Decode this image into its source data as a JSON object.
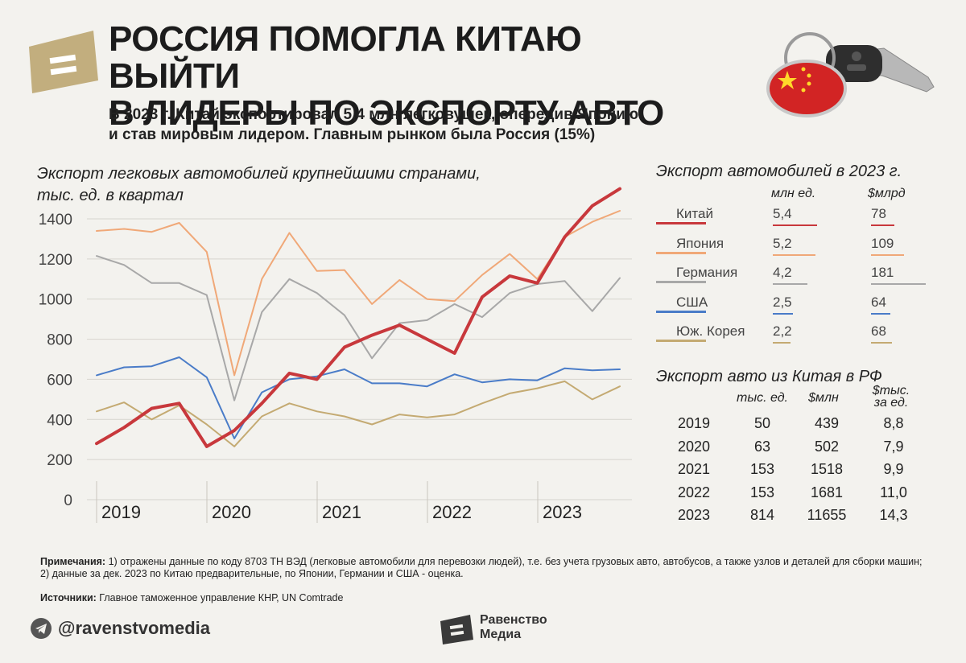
{
  "header": {
    "title_line1": "РОССИЯ ПОМОГЛА КИТАЮ ВЫЙТИ",
    "title_line2": "В ЛИДЕРЫ ПО ЭКСПОРТУ АВТО",
    "subtitle_line1": "В 2023 г. Китай экспортировал 5,4 млн легковушек, опередив Японию",
    "subtitle_line2": "и став мировым лидером. Главным рынком была Россия (15%)"
  },
  "colors": {
    "china": "#c8383c",
    "japan": "#f0a878",
    "germany": "#a8a8a8",
    "usa": "#4a7cc8",
    "korea": "#c4aa72",
    "logo": "#c2ae7e"
  },
  "chart_data": {
    "type": "line",
    "title_line1": "Экспорт легковых автомобилей крупнейшими странами,",
    "title_line2": "тыс. ед. в квартал",
    "ylim": [
      0,
      1500
    ],
    "yticks": [
      0,
      200,
      400,
      600,
      800,
      1000,
      1200,
      1400
    ],
    "x_groups": [
      "2019",
      "2020",
      "2021",
      "2022",
      "2023"
    ],
    "x": [
      "2019Q1",
      "2019Q2",
      "2019Q3",
      "2019Q4",
      "2020Q1",
      "2020Q2",
      "2020Q3",
      "2020Q4",
      "2021Q1",
      "2021Q2",
      "2021Q3",
      "2021Q4",
      "2022Q1",
      "2022Q2",
      "2022Q3",
      "2022Q4",
      "2023Q1",
      "2023Q2",
      "2023Q3",
      "2023Q4"
    ],
    "series": [
      {
        "name": "Япония",
        "color": "#f0a878",
        "width": 2,
        "values": [
          1340,
          1350,
          1335,
          1380,
          1235,
          620,
          1100,
          1330,
          1140,
          1145,
          975,
          1095,
          1000,
          990,
          1120,
          1225,
          1100,
          1310,
          1385,
          1440
        ]
      },
      {
        "name": "Германия",
        "color": "#a8a8a8",
        "width": 2,
        "values": [
          1215,
          1170,
          1080,
          1080,
          1020,
          495,
          935,
          1100,
          1030,
          920,
          705,
          880,
          895,
          975,
          910,
          1030,
          1075,
          1090,
          940,
          1105
        ]
      },
      {
        "name": "США",
        "color": "#4a7cc8",
        "width": 2,
        "values": [
          620,
          660,
          665,
          710,
          610,
          305,
          535,
          600,
          615,
          650,
          580,
          580,
          565,
          625,
          585,
          600,
          595,
          655,
          645,
          650
        ]
      },
      {
        "name": "Юж. Корея",
        "color": "#c4aa72",
        "width": 2,
        "values": [
          440,
          485,
          400,
          470,
          375,
          265,
          415,
          480,
          440,
          415,
          375,
          425,
          410,
          425,
          480,
          530,
          555,
          590,
          500,
          565
        ]
      },
      {
        "name": "Китай",
        "color": "#c8383c",
        "width": 4,
        "values": [
          280,
          360,
          455,
          480,
          265,
          345,
          480,
          630,
          600,
          760,
          820,
          870,
          800,
          730,
          1010,
          1115,
          1080,
          1310,
          1465,
          1550
        ]
      }
    ]
  },
  "stats": {
    "title": "Экспорт автомобилей в 2023 г.",
    "col1": "млн ед.",
    "col2": "$млрд",
    "rows": [
      {
        "country": "Китай",
        "units": "5,4",
        "usd": "78",
        "units_val": 5.4,
        "usd_val": 78,
        "color": "#c8383c"
      },
      {
        "country": "Япония",
        "units": "5,2",
        "usd": "109",
        "units_val": 5.2,
        "usd_val": 109,
        "color": "#f0a878"
      },
      {
        "country": "Германия",
        "units": "4,2",
        "usd": "181",
        "units_val": 4.2,
        "usd_val": 181,
        "color": "#a8a8a8"
      },
      {
        "country": "США",
        "units": "2,5",
        "usd": "64",
        "units_val": 2.5,
        "usd_val": 64,
        "color": "#4a7cc8"
      },
      {
        "country": "Юж. Корея",
        "units": "2,2",
        "usd": "68",
        "units_val": 2.2,
        "usd_val": 68,
        "color": "#c4aa72"
      }
    ]
  },
  "russia": {
    "title": "Экспорт авто из Китая в РФ",
    "col1": "тыс. ед.",
    "col2": "$млн",
    "col3_line1": "$тыс.",
    "col3_line2": "за ед.",
    "rows": [
      {
        "year": "2019",
        "units": "50",
        "usd": "439",
        "per": "8,8"
      },
      {
        "year": "2020",
        "units": "63",
        "usd": "502",
        "per": "7,9"
      },
      {
        "year": "2021",
        "units": "153",
        "usd": "1518",
        "per": "9,9"
      },
      {
        "year": "2022",
        "units": "153",
        "usd": "1681",
        "per": "11,0"
      },
      {
        "year": "2023",
        "units": "814",
        "usd": "11655",
        "per": "14,3"
      }
    ]
  },
  "notes": {
    "label": "Примечания:",
    "text": " 1) отражены данные по коду 8703 ТН ВЭД (легковые автомобили для перевозки людей), т.е. без учета грузовых авто, автобусов, а также узлов и деталей для сборки машин; 2) данные за дек. 2023 по Китаю предварительные, по Японии, Германии и США - оценка.",
    "sources_label": "Источники:",
    "sources_text": " Главное таможенное управление КНР, UN Comtrade"
  },
  "footer": {
    "handle": "@ravenstvomedia",
    "brand_line1": "Равенство",
    "brand_line2": "Медиа"
  }
}
